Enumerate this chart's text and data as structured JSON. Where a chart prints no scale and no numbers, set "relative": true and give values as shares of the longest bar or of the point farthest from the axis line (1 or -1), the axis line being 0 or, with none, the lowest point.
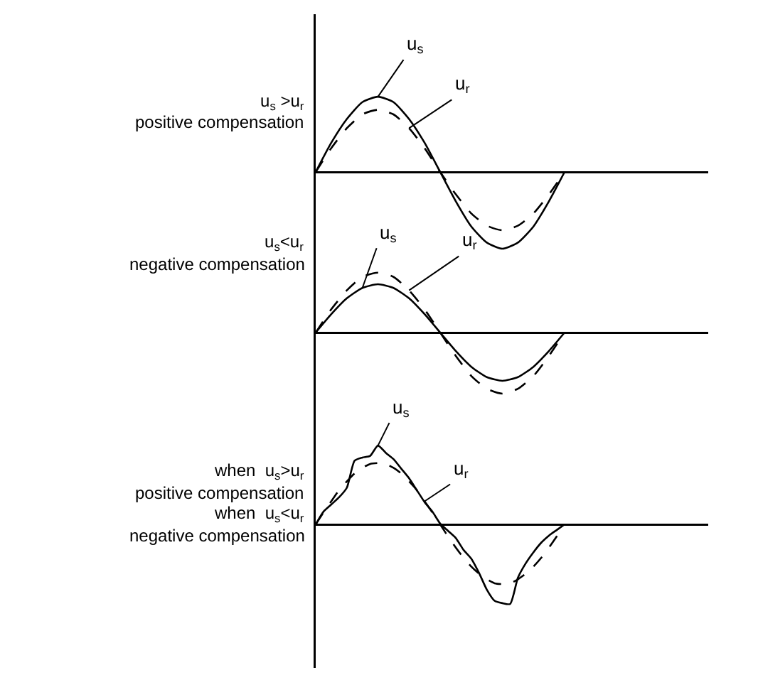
{
  "chart_data": [
    {
      "type": "line",
      "relative": true,
      "legend": false,
      "grid": false,
      "marker": "none",
      "annotations": [
        "u$_{s}$ >u$_{r}$",
        "positive compensation"
      ],
      "categories": [
        null,
        null,
        null,
        null,
        null,
        null,
        null,
        null,
        null,
        null,
        null,
        null,
        null,
        null,
        null,
        null,
        null
      ],
      "series": [
        {
          "name": "u$_{s}$",
          "color": "#000000",
          "line_style": "solid",
          "values": [
            0,
            0.38,
            0.69,
            0.91,
            0.98,
            0.91,
            0.69,
            0.38,
            0,
            -0.38,
            -0.71,
            -0.92,
            -1,
            -0.92,
            -0.71,
            -0.38,
            0
          ]
        },
        {
          "name": "u$_{r}$",
          "color": "#000000",
          "line_style": "dashed",
          "values": [
            0,
            0.31,
            0.57,
            0.75,
            0.81,
            0.75,
            0.57,
            0.31,
            0,
            -0.29,
            -0.54,
            -0.7,
            -0.76,
            -0.7,
            -0.54,
            -0.29,
            0
          ]
        }
      ]
    },
    {
      "type": "line",
      "relative": true,
      "legend": false,
      "grid": false,
      "marker": "none",
      "annotations": [
        "u$_{s}$<u$_{r}$",
        "negative compensation"
      ],
      "categories": [
        null,
        null,
        null,
        null,
        null,
        null,
        null,
        null,
        null,
        null,
        null,
        null,
        null,
        null,
        null,
        null,
        null
      ],
      "series": [
        {
          "name": "u$_{s}$",
          "color": "#000000",
          "line_style": "solid",
          "values": [
            0,
            0.3,
            0.56,
            0.73,
            0.79,
            0.73,
            0.56,
            0.3,
            0,
            -0.3,
            -0.56,
            -0.73,
            -0.79,
            -0.73,
            -0.56,
            -0.3,
            0
          ]
        },
        {
          "name": "u$_{r}$",
          "color": "#000000",
          "line_style": "dashed",
          "values": [
            0,
            0.38,
            0.69,
            0.91,
            0.98,
            0.91,
            0.69,
            0.38,
            0,
            -0.38,
            -0.71,
            -0.92,
            -1,
            -0.92,
            -0.71,
            -0.38,
            0
          ]
        }
      ]
    },
    {
      "type": "line",
      "relative": true,
      "legend": false,
      "grid": false,
      "marker": "none",
      "annotations": [
        "when  u$_{s}$>u$_{r}$",
        "positive compensation",
        "when  u$_{s}$<u$_{r}$",
        "negative compensation"
      ],
      "categories": [
        null,
        null,
        null,
        null,
        null,
        null,
        null,
        null,
        null,
        null,
        null,
        null,
        null,
        null,
        null,
        null,
        null,
        null,
        null,
        null,
        null,
        null,
        null,
        null,
        null,
        null,
        null,
        null,
        null,
        null,
        null,
        null,
        null
      ],
      "series": [
        {
          "name": "u$_{s}$",
          "color": "#000000",
          "line_style": "solid",
          "values": [
            0,
            0.16,
            0.25,
            0.34,
            0.46,
            0.8,
            0.84,
            0.86,
            0.99,
            0.9,
            0.82,
            0.7,
            0.58,
            0.43,
            0.28,
            0.16,
            0.01,
            -0.08,
            -0.17,
            -0.32,
            -0.43,
            -0.61,
            -0.82,
            -0.96,
            -0.99,
            -1,
            -0.67,
            -0.49,
            -0.35,
            -0.23,
            -0.14,
            -0.07,
            0
          ]
        },
        {
          "name": "u$_{r}$",
          "color": "#000000",
          "line_style": "dashed",
          "values": [
            0,
            0.15,
            0.29,
            0.43,
            0.54,
            0.64,
            0.71,
            0.76,
            0.77,
            0.76,
            0.71,
            0.64,
            0.54,
            0.43,
            0.29,
            0.15,
            0,
            -0.15,
            -0.29,
            -0.42,
            -0.53,
            -0.62,
            -0.69,
            -0.74,
            -0.75,
            -0.74,
            -0.69,
            -0.62,
            -0.53,
            -0.42,
            -0.29,
            -0.15,
            0
          ]
        }
      ]
    }
  ]
}
